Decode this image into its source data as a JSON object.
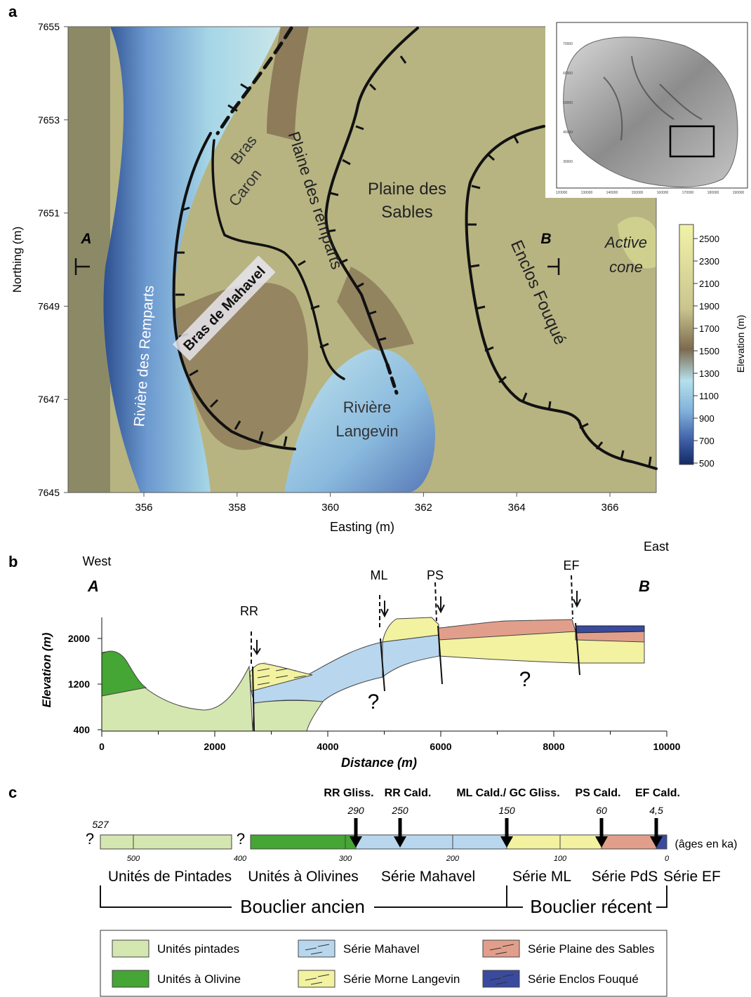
{
  "panel_a": {
    "label": "a",
    "y_ticks": [
      "7655",
      "7653",
      "7651",
      "7649",
      "7647",
      "7645"
    ],
    "x_ticks": [
      "356",
      "358",
      "360",
      "362",
      "364",
      "366"
    ],
    "x_label": "Easting (m)",
    "y_label": "Northing (m)",
    "place_labels": {
      "bras": "Bras",
      "caron": "Caron",
      "plaine_des_remparts": "Plaine des remparts",
      "plaine": "Plaine des",
      "sables": "Sables",
      "bras_de_mahavel": "Bras de Mahavel",
      "riviere_des_remparts": "Rivière des Remparts",
      "riviere": "Rivière",
      "langevin": "Langevin",
      "enclos_fouque": "Enclos Fouqué",
      "active": "Active",
      "cone": "cone"
    },
    "section_a": "A",
    "section_b": "B",
    "elevation": {
      "label": "Elevation (m)",
      "ticks": [
        "2500",
        "2300",
        "2100",
        "1900",
        "1700",
        "1500",
        "1300",
        "1100",
        "900",
        "700",
        "500"
      ],
      "colors": [
        "#f2f3a8",
        "#c9c58e",
        "#7d6a4e",
        "#b6e0ec",
        "#7fb0da",
        "#3e5ea6",
        "#142a64"
      ]
    },
    "inset": {
      "x_ticks": [
        "120000",
        "130000",
        "140000",
        "150000",
        "160000",
        "170000",
        "180000",
        "190000"
      ],
      "y_ticks": [
        "70000",
        "60000",
        "50000",
        "40000",
        "30000"
      ]
    }
  },
  "panel_b": {
    "label": "b",
    "west": "West",
    "east": "East",
    "end_a": "A",
    "end_b": "B",
    "y_label": "Elevation (m)",
    "y_ticks": [
      "2000",
      "1200",
      "400"
    ],
    "x_label": "Distance (m)",
    "x_ticks": [
      "0",
      "2000",
      "4000",
      "6000",
      "8000",
      "10000"
    ],
    "faults": [
      "RR",
      "ML",
      "PS",
      "EF"
    ],
    "unknown": "?"
  },
  "panel_c": {
    "label": "c",
    "events": [
      {
        "name": "RR Gliss.",
        "age": "290"
      },
      {
        "name": "RR Cald.",
        "age": "250"
      },
      {
        "name": "ML Cald./ GC Gliss.",
        "age": "150"
      },
      {
        "name": "PS Cald.",
        "age": "60"
      },
      {
        "name": "EF Cald.",
        "age": "4,5"
      }
    ],
    "start_age": "527",
    "unknown": "?",
    "scale_ticks": [
      "500",
      "400",
      "300",
      "200",
      "100",
      "0"
    ],
    "age_unit": "(âges en ka)",
    "units": [
      "Unités de Pintades",
      "Unités à Olivines",
      "Série Mahavel",
      "Série ML",
      "Série PdS",
      "Série EF"
    ],
    "groups": [
      "Bouclier ancien",
      "Bouclier récent"
    ]
  },
  "legend": [
    {
      "label": "Unités pintades",
      "color": "#d5e7b1"
    },
    {
      "label": "Série Mahavel",
      "color": "#b8d7ee"
    },
    {
      "label": "Série Plaine des Sables",
      "color": "#e19f8b"
    },
    {
      "label": "Unités à Olivine",
      "color": "#45a535"
    },
    {
      "label": "Série Morne Langevin",
      "color": "#f2f2a0"
    },
    {
      "label": "Série Enclos Fouqué",
      "color": "#394a9f"
    }
  ]
}
